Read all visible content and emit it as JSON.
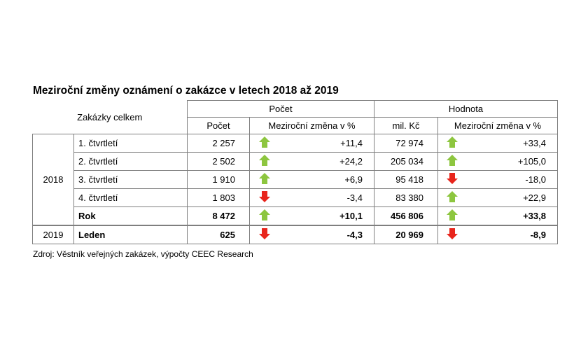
{
  "title": "Meziroční změny oznámení o zakázce v letech 2018 až 2019",
  "source": "Zdroj: Věstník veřejných zakázek, výpočty CEEC Research",
  "header": {
    "group_label": "Zakázky celkem",
    "count_group": "Počet",
    "value_group": "Hodnota",
    "count_col": "Počet",
    "count_change_col": "Meziroční změna v %",
    "value_col": "mil. Kč",
    "value_change_col": "Meziroční změna v %"
  },
  "colors": {
    "up": "#8dc63f",
    "down": "#e8251c",
    "border": "#7f7f7f"
  },
  "years": [
    "2018",
    "2019"
  ],
  "rows": [
    {
      "label": "1. čtvrtletí",
      "count": "2 257",
      "count_dir": "up",
      "count_change": "+11,4",
      "value": "72 974",
      "value_dir": "up",
      "value_change": "+33,4"
    },
    {
      "label": "2. čtvrtletí",
      "count": "2 502",
      "count_dir": "up",
      "count_change": "+24,2",
      "value": "205 034",
      "value_dir": "up",
      "value_change": "+105,0"
    },
    {
      "label": "3. čtvrtletí",
      "count": "1 910",
      "count_dir": "up",
      "count_change": "+6,9",
      "value": "95 418",
      "value_dir": "down",
      "value_change": "-18,0"
    },
    {
      "label": "4. čtvrtletí",
      "count": "1 803",
      "count_dir": "down",
      "count_change": "-3,4",
      "value": "83 380",
      "value_dir": "up",
      "value_change": "+22,9"
    },
    {
      "label": "Rok",
      "count": "8 472",
      "count_dir": "up",
      "count_change": "+10,1",
      "value": "456 806",
      "value_dir": "up",
      "value_change": "+33,8"
    },
    {
      "label": "Leden",
      "count": "625",
      "count_dir": "down",
      "count_change": "-4,3",
      "value": "20 969",
      "value_dir": "down",
      "value_change": "-8,9"
    }
  ]
}
